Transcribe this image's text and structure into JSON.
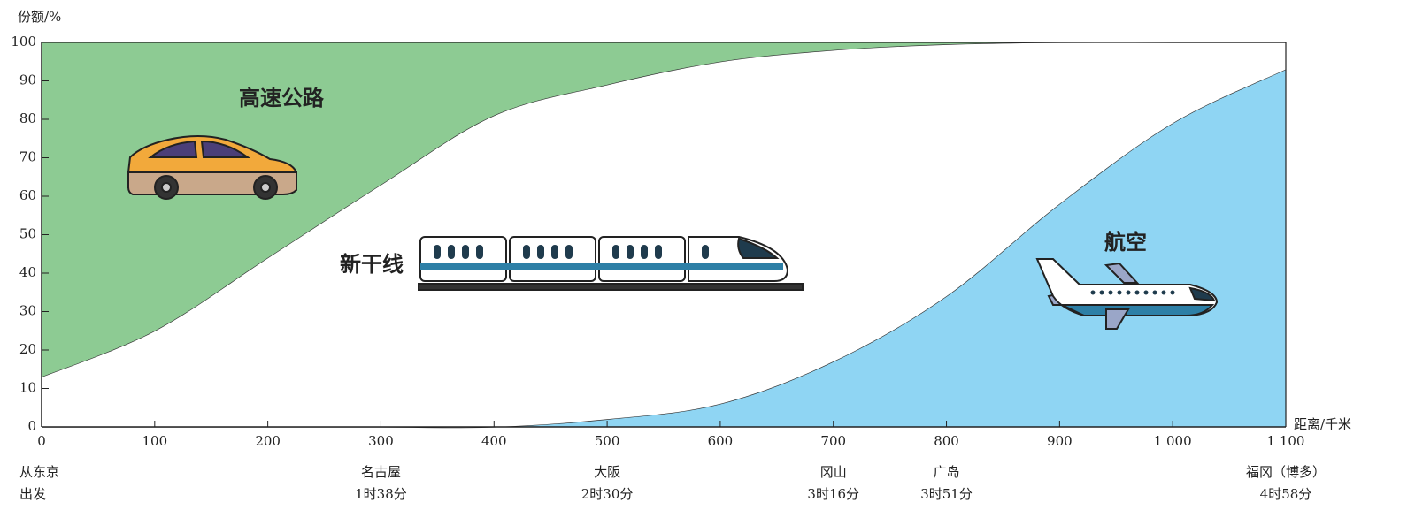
{
  "chart_data": {
    "type": "stacked-area",
    "y_label": "份额/%",
    "x_label": "距离/千米",
    "x": [
      0,
      100,
      200,
      300,
      400,
      500,
      600,
      700,
      800,
      900,
      1000,
      1100
    ],
    "series": [
      {
        "name": "航空",
        "color": "#8fd5f3",
        "values": [
          0,
          0,
          0,
          0,
          0,
          2,
          6,
          17,
          34,
          58,
          79,
          93
        ]
      },
      {
        "name": "新干线",
        "color": "#ffffff",
        "values": [
          13,
          25,
          44,
          63,
          81,
          87,
          89,
          81,
          65.5,
          42,
          21,
          7
        ]
      },
      {
        "name": "高速公路",
        "color": "#8dcb93",
        "values": [
          87,
          75,
          56,
          37,
          19,
          11,
          5,
          2,
          0.5,
          0,
          0,
          0
        ]
      }
    ],
    "xlim": [
      0,
      1100
    ],
    "ylim": [
      0,
      100
    ],
    "xticks": [
      0,
      100,
      200,
      300,
      400,
      500,
      600,
      700,
      800,
      900,
      {
        "value": 1000,
        "label": "1 000"
      },
      {
        "value": 1100,
        "label": "1 100"
      }
    ],
    "yticks": [
      0,
      10,
      20,
      30,
      40,
      50,
      60,
      70,
      80,
      90,
      100
    ],
    "stations": [
      {
        "x": 0,
        "name": "从东京",
        "time": "出发"
      },
      {
        "x": 300,
        "name": "名古屋",
        "time": "1时38分"
      },
      {
        "x": 500,
        "name": "大阪",
        "time": "2时30分"
      },
      {
        "x": 700,
        "name": "冈山",
        "time": "3时16分"
      },
      {
        "x": 800,
        "name": "广岛",
        "time": "3时51分"
      },
      {
        "x": 1100,
        "name": "福冈（博多）",
        "time": "4时58分"
      }
    ]
  }
}
